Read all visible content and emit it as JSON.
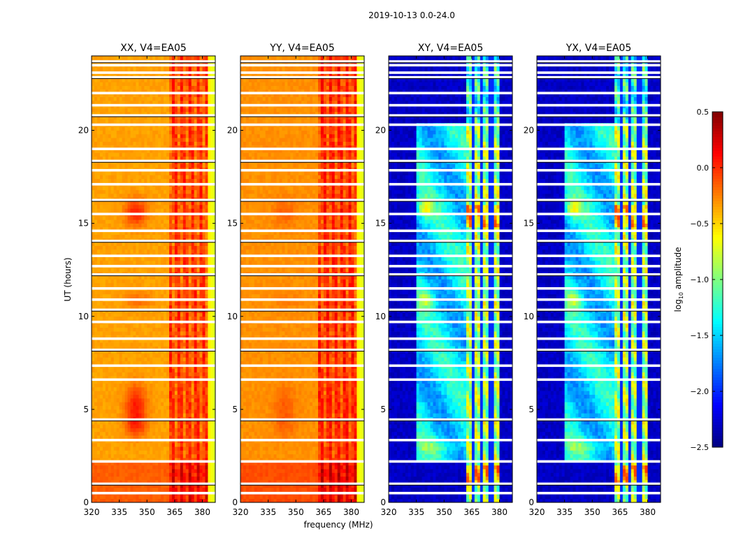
{
  "chart_data": {
    "type": "heatmap",
    "title": "2019-10-13 0.0-24.0",
    "xlabel": "frequency (MHz)",
    "ylabel": "UT (hours)",
    "xlim": [
      320,
      387
    ],
    "ylim": [
      0,
      24
    ],
    "xticks": [
      320,
      335,
      350,
      365,
      380
    ],
    "yticks": [
      0,
      5,
      10,
      15,
      20
    ],
    "colorbar": {
      "label": "log10 amplitude",
      "label_main": "log",
      "label_sub": "10",
      "label_rest": " amplitude",
      "colormap": "jet",
      "range": [
        -2.5,
        0.5
      ],
      "ticks": [
        "0.5",
        "0.0",
        "−0.5",
        "−1.0",
        "−1.5",
        "−2.0",
        "−2.5"
      ],
      "tick_values": [
        0.5,
        0.0,
        -0.5,
        -1.0,
        -1.5,
        -2.0,
        -2.5
      ]
    },
    "flagged_hours": [
      23.7,
      23.5,
      23.1,
      22.85,
      22.0,
      21.35,
      20.8,
      20.3,
      19.0,
      18.35,
      17.85,
      17.1,
      16.25,
      15.5,
      14.6,
      14.05,
      13.25,
      12.7,
      12.25,
      11.5,
      10.9,
      10.35,
      9.7,
      8.8,
      8.2,
      7.35,
      6.6,
      4.45,
      3.35,
      2.2,
      1.0,
      0.5
    ],
    "panels": [
      {
        "title": "XX, V4=EA05",
        "kind": "parallel",
        "base": -0.35,
        "blob": 0.4
      },
      {
        "title": "YY, V4=EA05",
        "kind": "parallel",
        "base": -0.3,
        "blob": 0.15
      },
      {
        "title": "XY, V4=EA05",
        "kind": "cross",
        "base": -2.3,
        "blob": 0.7
      },
      {
        "title": "YX, V4=EA05",
        "kind": "cross",
        "base": -2.3,
        "blob": 0.7
      }
    ]
  }
}
